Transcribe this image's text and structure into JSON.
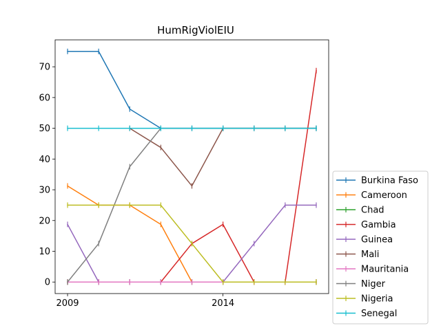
{
  "chart_data": {
    "type": "line",
    "title": "HumRigViolEIU",
    "xlabel": "",
    "ylabel": "",
    "x": [
      2009,
      2010,
      2011,
      2012,
      2013,
      2014,
      2015,
      2016,
      2017
    ],
    "xlim": [
      2008.6,
      2017.4
    ],
    "ylim": [
      -3.75,
      78.75
    ],
    "xticks": [
      2009,
      2014
    ],
    "xtick_labels": [
      "2009",
      "2014"
    ],
    "yticks": [
      0,
      10,
      20,
      30,
      40,
      50,
      60,
      70
    ],
    "ytick_labels": [
      "0",
      "10",
      "20",
      "30",
      "40",
      "50",
      "60",
      "70"
    ],
    "grid": false,
    "legend_position": "outside right, lower",
    "marker": "|",
    "series": [
      {
        "name": "Burkina Faso",
        "color": "#1f77b4",
        "values": [
          75,
          75,
          56.25,
          50,
          50,
          50,
          50,
          50,
          50
        ]
      },
      {
        "name": "Cameroon",
        "color": "#ff7f0e",
        "values": [
          31.25,
          25,
          25,
          18.75,
          0,
          0,
          0,
          0,
          0
        ]
      },
      {
        "name": "Chad",
        "color": "#2ca02c",
        "values": [
          0,
          0,
          0,
          0,
          0,
          0,
          0,
          0,
          0
        ]
      },
      {
        "name": "Gambia",
        "color": "#d62728",
        "values": [
          0,
          0,
          0,
          0,
          12.5,
          18.75,
          0,
          0,
          68.75
        ]
      },
      {
        "name": "Guinea",
        "color": "#9467bd",
        "values": [
          18.75,
          0,
          0,
          0,
          0,
          0,
          12.5,
          25,
          25
        ]
      },
      {
        "name": "Mali",
        "color": "#8c564b",
        "values": [
          null,
          null,
          50,
          43.75,
          31.25,
          50,
          50,
          50,
          50
        ]
      },
      {
        "name": "Mauritania",
        "color": "#e377c2",
        "values": [
          0,
          0,
          0,
          0,
          0,
          0,
          0,
          0,
          0
        ]
      },
      {
        "name": "Niger",
        "color": "#7f7f7f",
        "values": [
          0,
          12.5,
          37.5,
          50,
          50,
          50,
          50,
          50,
          50
        ]
      },
      {
        "name": "Nigeria",
        "color": "#bcbd22",
        "values": [
          25,
          25,
          25,
          25,
          12.5,
          0,
          0,
          0,
          0
        ]
      },
      {
        "name": "Senegal",
        "color": "#17becf",
        "values": [
          50,
          50,
          50,
          50,
          50,
          50,
          50,
          50,
          50
        ]
      }
    ]
  }
}
